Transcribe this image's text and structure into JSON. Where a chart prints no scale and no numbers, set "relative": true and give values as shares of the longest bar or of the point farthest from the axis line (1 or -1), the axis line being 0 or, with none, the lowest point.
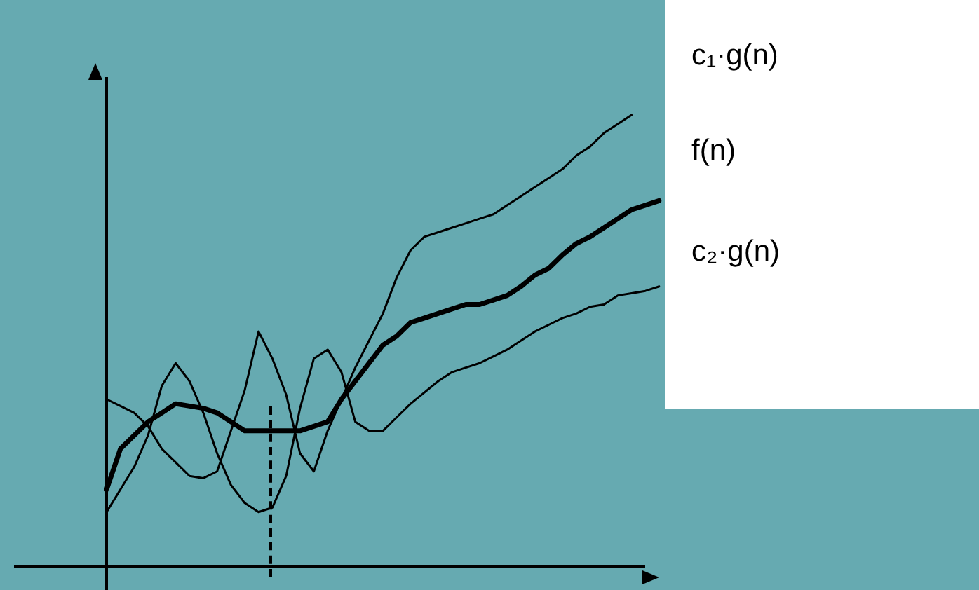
{
  "chart_data": {
    "type": "line",
    "relative": true,
    "grid": false,
    "marker": "none",
    "line_style": "solid",
    "categories": [
      null,
      null,
      null,
      null,
      null,
      null,
      null,
      null,
      null,
      null,
      null,
      null,
      null,
      null,
      null,
      null,
      null,
      null,
      null,
      null,
      null,
      null,
      null,
      null,
      null,
      null,
      null,
      null,
      null,
      null,
      null,
      null,
      null,
      null,
      null,
      null,
      null,
      null,
      null,
      null,
      null
    ],
    "series": [
      {
        "name": "c₁·g(n)",
        "color": "#000000",
        "values": [
          0.37,
          0.355,
          0.34,
          0.31,
          0.26,
          0.23,
          0.2,
          0.195,
          0.21,
          0.3,
          0.39,
          0.52,
          0.46,
          0.38,
          0.25,
          0.21,
          0.3,
          0.37,
          0.44,
          0.5,
          0.56,
          0.64,
          0.7,
          0.73,
          0.74,
          0.75,
          0.76,
          0.77,
          0.78,
          0.8,
          0.82,
          0.84,
          0.86,
          0.88,
          0.91,
          0.93,
          0.96,
          0.98,
          1.0,
          null,
          null
        ]
      },
      {
        "name": "f(n)",
        "color": "#000000",
        "values": [
          0.17,
          0.26,
          0.29,
          0.32,
          0.34,
          0.36,
          0.355,
          0.35,
          0.34,
          0.32,
          0.3,
          0.3,
          0.3,
          0.3,
          0.3,
          0.31,
          0.32,
          0.37,
          0.41,
          0.45,
          0.49,
          0.51,
          0.54,
          0.55,
          0.56,
          0.57,
          0.58,
          0.58,
          0.59,
          0.6,
          0.62,
          0.645,
          0.66,
          0.69,
          0.715,
          0.73,
          0.75,
          0.77,
          0.79,
          0.8,
          0.81
        ]
      },
      {
        "name": "c₂·g(n)",
        "color": "#000000",
        "values": [
          0.12,
          0.17,
          0.22,
          0.29,
          0.4,
          0.45,
          0.41,
          0.34,
          0.25,
          0.18,
          0.14,
          0.12,
          0.13,
          0.2,
          0.35,
          0.46,
          0.48,
          0.43,
          0.32,
          0.3,
          0.3,
          0.33,
          0.36,
          0.385,
          0.41,
          0.43,
          0.44,
          0.45,
          0.465,
          0.48,
          0.5,
          0.52,
          0.535,
          0.55,
          0.56,
          0.575,
          0.58,
          0.6,
          0.605,
          0.61,
          0.62
        ]
      }
    ]
  }
}
